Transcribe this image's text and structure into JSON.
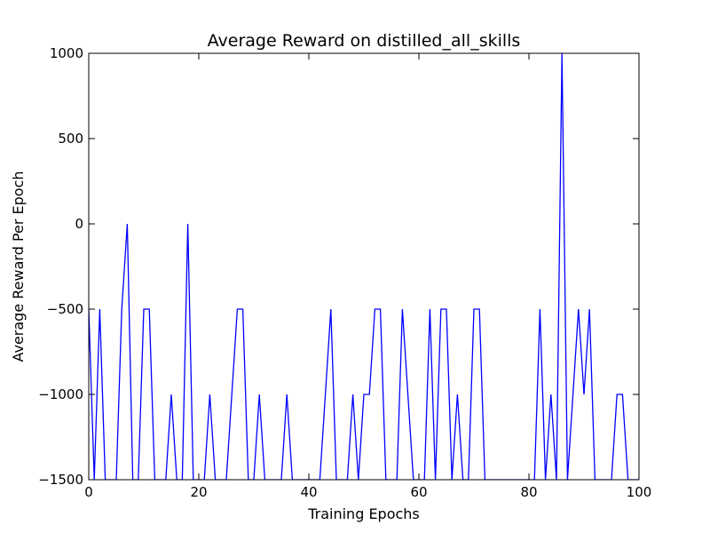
{
  "chart_data": {
    "type": "line",
    "title": "Average Reward on distilled_all_skills",
    "xlabel": "Training Epochs",
    "ylabel": "Average Reward Per Epoch",
    "xlim": [
      0,
      100
    ],
    "ylim": [
      -1500,
      1000
    ],
    "xticks": [
      0,
      20,
      40,
      60,
      80,
      100
    ],
    "yticks": [
      -1500,
      -1000,
      -500,
      0,
      500,
      1000
    ],
    "xtick_labels": [
      "0",
      "20",
      "40",
      "60",
      "80",
      "100"
    ],
    "ytick_labels": [
      "−1500",
      "−1000",
      "−500",
      "0",
      "500",
      "1000"
    ],
    "grid": false,
    "legend": "none",
    "series": [
      {
        "color": "#0000ff",
        "x": [
          0,
          1,
          2,
          3,
          4,
          5,
          6,
          7,
          8,
          9,
          10,
          11,
          12,
          13,
          14,
          15,
          16,
          17,
          18,
          19,
          20,
          21,
          22,
          23,
          24,
          25,
          26,
          27,
          28,
          29,
          30,
          31,
          32,
          33,
          34,
          35,
          36,
          37,
          38,
          39,
          40,
          41,
          42,
          43,
          44,
          45,
          46,
          47,
          48,
          49,
          50,
          51,
          52,
          53,
          54,
          55,
          56,
          57,
          58,
          59,
          60,
          61,
          62,
          63,
          64,
          65,
          66,
          67,
          68,
          69,
          70,
          71,
          72,
          73,
          74,
          75,
          76,
          77,
          78,
          79,
          80,
          81,
          82,
          83,
          84,
          85,
          86,
          87,
          88,
          89,
          90,
          91,
          92,
          93,
          94,
          95,
          96,
          97,
          98,
          99,
          100
        ],
        "y": [
          -500,
          -1500,
          -500,
          -1500,
          -1500,
          -1500,
          -500,
          0,
          -1500,
          -1500,
          -500,
          -500,
          -1500,
          -1500,
          -1500,
          -1000,
          -1500,
          -1500,
          0,
          -1500,
          -1500,
          -1500,
          -1000,
          -1500,
          -1500,
          -1500,
          -1000,
          -500,
          -500,
          -1500,
          -1500,
          -1000,
          -1500,
          -1500,
          -1500,
          -1500,
          -1000,
          -1500,
          -1500,
          -1500,
          -1500,
          -1500,
          -1500,
          -1000,
          -500,
          -1500,
          -1500,
          -1500,
          -1000,
          -1500,
          -1000,
          -1000,
          -500,
          -500,
          -1500,
          -1500,
          -1500,
          -500,
          -1000,
          -1500,
          -1500,
          -1500,
          -500,
          -1500,
          -500,
          -500,
          -1500,
          -1000,
          -1500,
          -1500,
          -500,
          -500,
          -1500,
          -1500,
          -1500,
          -1500,
          -1500,
          -1500,
          -1500,
          -1500,
          -1500,
          -1500,
          -500,
          -1500,
          -1000,
          -1500,
          1000,
          -1500,
          -1000,
          -500,
          -1000,
          -500,
          -1500,
          -1500,
          -1500,
          -1500,
          -1000,
          -1000,
          -1500,
          -1500,
          -1500
        ]
      }
    ]
  }
}
